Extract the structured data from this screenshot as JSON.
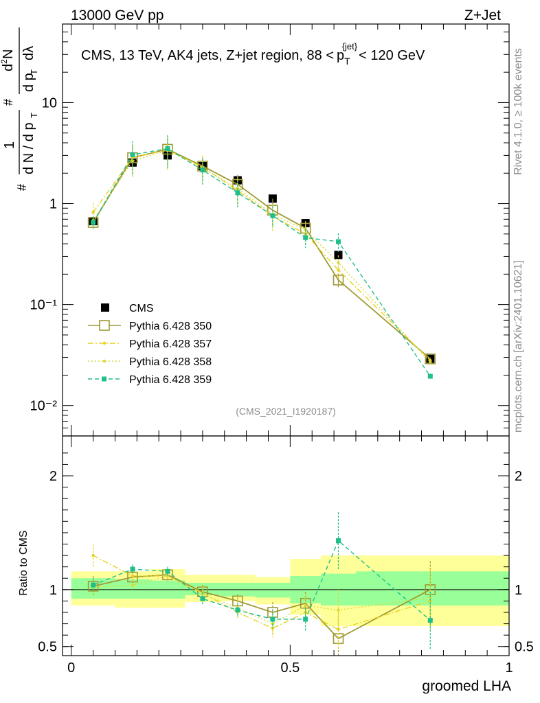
{
  "header": {
    "left": "13000 GeV pp",
    "right": "Z+Jet"
  },
  "side": {
    "rivet": "Rivet 4.1.0, ≥ 100k events",
    "mcplots": "mcplots.cern.ch [arXiv:2401.10621]"
  },
  "chart_data": [
    {
      "type": "scatter",
      "panel": "main",
      "title": "CMS, 13 TeV, AK4 jets, Z+jet region, 88 < p_T^{jet} < 120 GeV",
      "title_parts": {
        "main": "CMS, 13 TeV, AK4 jets, Z+jet region, 88 <",
        "p": "p",
        "T": "T",
        "jet": "{jet}",
        "end": "< 120 GeV"
      },
      "ylabel": "1/(dN/dp_T) d²N/(dp_T dλ)",
      "yscale": "log",
      "ylim": [
        0.005,
        60
      ],
      "xlim": [
        -0.02,
        1.0
      ],
      "ytick_labels": [
        "10",
        "1",
        "10⁻¹",
        "10⁻²"
      ],
      "watermark": "(CMS_2021_I1920187)",
      "x": [
        0.05,
        0.14,
        0.22,
        0.3,
        0.38,
        0.46,
        0.535,
        0.61,
        0.82
      ],
      "series": [
        {
          "name": "CMS",
          "color": "#000000",
          "marker": "square-filled",
          "line": "none",
          "values": [
            0.67,
            2.55,
            3.0,
            2.35,
            1.7,
            1.12,
            0.64,
            0.31,
            0.029
          ]
        },
        {
          "name": "Pythia 6.428 350",
          "color": "#a09a33",
          "marker": "square-open",
          "line": "solid",
          "values": [
            0.65,
            2.85,
            3.45,
            2.35,
            1.55,
            0.86,
            0.57,
            0.175,
            0.029
          ],
          "errors": [
            0.04,
            0.1,
            0.1,
            0.08,
            0.08,
            0.1,
            0.06,
            0.05,
            0.007
          ]
        },
        {
          "name": "Pythia 6.428 357",
          "color": "#e8d21c",
          "marker": "dot",
          "line": "dashdot",
          "values": [
            0.82,
            2.85,
            3.4,
            2.3,
            1.35,
            0.75,
            0.5,
            0.22,
            0.028
          ],
          "errors": [
            0.08,
            0.12,
            0.12,
            0.1,
            0.1,
            0.1,
            0.07,
            0.06,
            0.008
          ]
        },
        {
          "name": "Pythia 6.428 358",
          "color": "#d8d83a",
          "marker": "dot",
          "line": "dotted",
          "values": [
            0.68,
            2.65,
            3.35,
            2.25,
            1.42,
            0.78,
            0.55,
            0.26,
            0.027
          ],
          "errors": [
            0.06,
            0.1,
            0.12,
            0.1,
            0.1,
            0.08,
            0.07,
            0.06,
            0.008
          ]
        },
        {
          "name": "Pythia 6.428 359",
          "color": "#1ebf8a",
          "marker": "square-filled-small",
          "line": "dashed",
          "values": [
            0.65,
            3.05,
            3.5,
            2.15,
            1.28,
            0.76,
            0.46,
            0.42,
            0.0195
          ],
          "errors": [
            0.05,
            0.12,
            0.12,
            0.1,
            0.1,
            0.08,
            0.07,
            0.07,
            0.007
          ]
        }
      ]
    },
    {
      "type": "scatter",
      "panel": "ratio",
      "ylabel": "Ratio to CMS",
      "xlabel": "groomed LHA",
      "ylim": [
        0.42,
        2.35
      ],
      "xlim": [
        -0.02,
        1.0
      ],
      "ytick_labels": [
        "2",
        "1",
        "0.5"
      ],
      "xtick_labels": [
        "0",
        "0.5",
        "1"
      ],
      "bins": [
        {
          "x0": 0.0,
          "x1": 0.1,
          "green": [
            0.92,
            1.1
          ],
          "yellow": [
            0.86,
            1.16
          ]
        },
        {
          "x0": 0.1,
          "x1": 0.18,
          "green": [
            0.92,
            1.09
          ],
          "yellow": [
            0.84,
            1.16
          ]
        },
        {
          "x0": 0.18,
          "x1": 0.26,
          "green": [
            0.92,
            1.08
          ],
          "yellow": [
            0.84,
            1.18
          ]
        },
        {
          "x0": 0.26,
          "x1": 0.34,
          "green": [
            0.95,
            1.06
          ],
          "yellow": [
            0.89,
            1.13
          ]
        },
        {
          "x0": 0.34,
          "x1": 0.42,
          "green": [
            0.94,
            1.06
          ],
          "yellow": [
            0.9,
            1.13
          ]
        },
        {
          "x0": 0.42,
          "x1": 0.5,
          "green": [
            0.93,
            1.06
          ],
          "yellow": [
            0.87,
            1.11
          ]
        },
        {
          "x0": 0.5,
          "x1": 0.57,
          "green": [
            0.88,
            1.12
          ],
          "yellow": [
            0.78,
            1.27
          ]
        },
        {
          "x0": 0.57,
          "x1": 0.65,
          "green": [
            0.86,
            1.14
          ],
          "yellow": [
            0.68,
            1.3
          ]
        },
        {
          "x0": 0.65,
          "x1": 1.0,
          "green": [
            0.86,
            1.16
          ],
          "yellow": [
            0.68,
            1.3
          ]
        }
      ],
      "series": [
        {
          "name": "Pythia 6.428 350",
          "values": [
            1.03,
            1.11,
            1.13,
            0.98,
            0.9,
            0.8,
            0.88,
            0.57,
            1.0
          ],
          "errors": [
            0.09,
            0.05,
            0.05,
            0.06,
            0.06,
            0.09,
            0.1,
            0.2,
            0.25
          ]
        },
        {
          "name": "Pythia 6.428 357",
          "values": [
            1.3,
            1.12,
            1.12,
            0.97,
            0.8,
            0.66,
            0.8,
            0.65,
            0.9
          ],
          "errors": [
            0.1,
            0.05,
            0.05,
            0.06,
            0.06,
            0.08,
            0.1,
            0.18,
            0.25
          ]
        },
        {
          "name": "Pythia 6.428 358",
          "values": [
            1.02,
            1.04,
            1.12,
            0.96,
            0.84,
            0.7,
            0.86,
            0.82,
            0.93
          ],
          "errors": [
            0.08,
            0.05,
            0.05,
            0.06,
            0.06,
            0.08,
            0.1,
            0.18,
            0.25
          ]
        },
        {
          "name": "Pythia 6.428 359",
          "values": [
            1.04,
            1.18,
            1.16,
            0.92,
            0.82,
            0.74,
            0.74,
            1.43,
            0.73
          ],
          "errors": [
            0.06,
            0.04,
            0.04,
            0.06,
            0.06,
            0.08,
            0.1,
            0.25,
            0.25
          ]
        }
      ]
    }
  ]
}
